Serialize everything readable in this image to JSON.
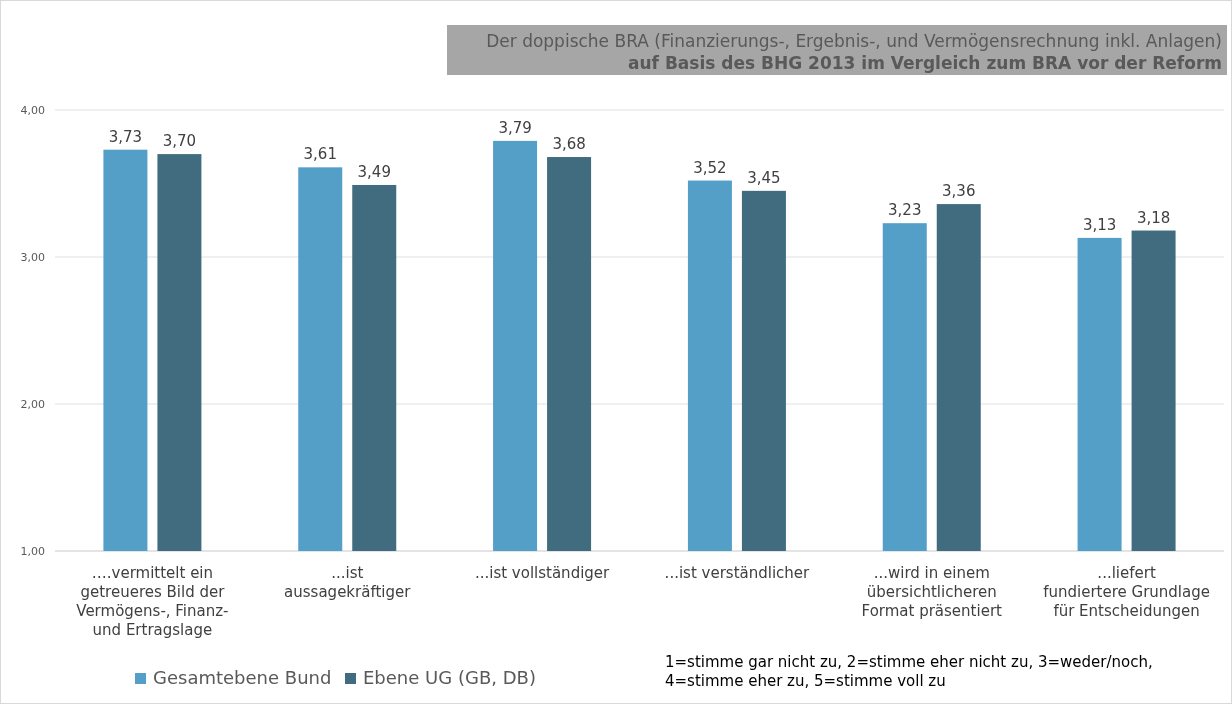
{
  "chart_data": {
    "type": "bar",
    "title": "Der doppische BRA (Finanzierungs-, Ergebnis-, und Vermögensrechnung inkl. Anlagen)",
    "subtitle": "auf Basis des BHG 2013 im Vergleich zum BRA vor der Reform",
    "categories": [
      "….vermittelt ein getreueres Bild der Vermögens-, Finanz- und Ertragslage",
      "...ist aussagekräftiger",
      "...ist vollständiger",
      "...ist verständlicher",
      "...wird in einem übersichtlicheren Format präsentiert",
      "...liefert fundiertere Grundlage für Entscheidungen"
    ],
    "series": [
      {
        "name": "Gesamtebene Bund",
        "color": "#539fc8",
        "values": [
          3.73,
          3.61,
          3.79,
          3.52,
          3.23,
          3.13
        ],
        "value_labels": [
          "3,73",
          "3,61",
          "3,79",
          "3,52",
          "3,23",
          "3,13"
        ]
      },
      {
        "name": "Ebene UG (GB, DB)",
        "color": "#416c7f",
        "values": [
          3.7,
          3.49,
          3.68,
          3.45,
          3.36,
          3.18
        ],
        "value_labels": [
          "3,70",
          "3,49",
          "3,68",
          "3,45",
          "3,36",
          "3,18"
        ]
      }
    ],
    "ylim": [
      1,
      4
    ],
    "yticks": [
      {
        "value": 1,
        "label": "1,00"
      },
      {
        "value": 2,
        "label": "2,00"
      },
      {
        "value": 3,
        "label": "3,00"
      },
      {
        "value": 4,
        "label": "4,00"
      }
    ],
    "grid": "y",
    "legend": "bottom left",
    "annotations": [
      "1=stimme gar nicht zu, 2=stimme eher nicht zu, 3=weder/noch, 4=stimme eher zu, 5=stimme voll zu"
    ]
  }
}
